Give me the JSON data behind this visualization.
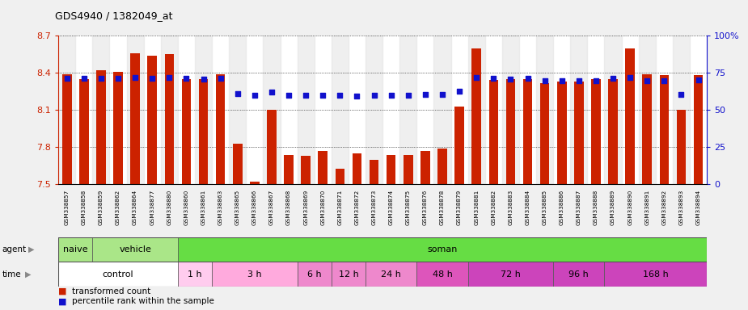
{
  "title": "GDS4940 / 1382049_at",
  "samples": [
    "GSM338857",
    "GSM338858",
    "GSM338859",
    "GSM338862",
    "GSM338864",
    "GSM338877",
    "GSM338880",
    "GSM338860",
    "GSM338861",
    "GSM338863",
    "GSM338865",
    "GSM338866",
    "GSM338867",
    "GSM338868",
    "GSM338869",
    "GSM338870",
    "GSM338871",
    "GSM338872",
    "GSM338873",
    "GSM338874",
    "GSM338875",
    "GSM338876",
    "GSM338878",
    "GSM338879",
    "GSM338881",
    "GSM338882",
    "GSM338883",
    "GSM338884",
    "GSM338885",
    "GSM338886",
    "GSM338887",
    "GSM338888",
    "GSM338889",
    "GSM338890",
    "GSM338891",
    "GSM338892",
    "GSM338893",
    "GSM338894"
  ],
  "bar_values": [
    8.39,
    8.35,
    8.42,
    8.41,
    8.56,
    8.54,
    8.55,
    8.35,
    8.35,
    8.39,
    7.83,
    7.52,
    8.1,
    7.74,
    7.73,
    7.77,
    7.63,
    7.75,
    7.7,
    7.74,
    7.74,
    7.77,
    7.79,
    8.13,
    8.6,
    8.34,
    8.35,
    8.35,
    8.32,
    8.33,
    8.33,
    8.35,
    8.35,
    8.6,
    8.39,
    8.38,
    8.1,
    8.38
  ],
  "percentile_values": [
    8.355,
    8.355,
    8.355,
    8.355,
    8.362,
    8.358,
    8.36,
    8.354,
    8.352,
    8.355,
    8.23,
    8.22,
    8.245,
    8.218,
    8.218,
    8.22,
    8.22,
    8.215,
    8.218,
    8.218,
    8.22,
    8.225,
    8.228,
    8.25,
    8.36,
    8.355,
    8.352,
    8.355,
    8.338,
    8.338,
    8.335,
    8.338,
    8.355,
    8.36,
    8.338,
    8.338,
    8.228,
    8.34
  ],
  "ylim": [
    7.5,
    8.7
  ],
  "yticks": [
    7.5,
    7.8,
    8.1,
    8.4,
    8.7
  ],
  "ytick_labels": [
    "7.5",
    "7.8",
    "8.1",
    "8.4",
    "8.7"
  ],
  "y2ticks": [
    0,
    25,
    50,
    75,
    100
  ],
  "y2tick_labels": [
    "0",
    "25",
    "50",
    "75",
    "100%"
  ],
  "bar_color": "#cc2200",
  "dot_color": "#1111cc",
  "grid_color": "#000000",
  "agent_info": [
    {
      "label": "naive",
      "start": 0,
      "end": 2,
      "color": "#aae688"
    },
    {
      "label": "vehicle",
      "start": 2,
      "end": 7,
      "color": "#aae688"
    },
    {
      "label": "soman",
      "start": 7,
      "end": 38,
      "color": "#66dd44"
    }
  ],
  "time_info": [
    {
      "label": "control",
      "start": 0,
      "end": 7,
      "color": "#ffffff"
    },
    {
      "label": "1 h",
      "start": 7,
      "end": 9,
      "color": "#ffccee"
    },
    {
      "label": "3 h",
      "start": 9,
      "end": 14,
      "color": "#ffaadd"
    },
    {
      "label": "6 h",
      "start": 14,
      "end": 16,
      "color": "#ee88cc"
    },
    {
      "label": "12 h",
      "start": 16,
      "end": 18,
      "color": "#ee88cc"
    },
    {
      "label": "24 h",
      "start": 18,
      "end": 21,
      "color": "#ee88cc"
    },
    {
      "label": "48 h",
      "start": 21,
      "end": 24,
      "color": "#dd55bb"
    },
    {
      "label": "72 h",
      "start": 24,
      "end": 29,
      "color": "#cc44bb"
    },
    {
      "label": "96 h",
      "start": 29,
      "end": 32,
      "color": "#cc44bb"
    },
    {
      "label": "168 h",
      "start": 32,
      "end": 38,
      "color": "#cc44bb"
    }
  ],
  "fig_bg": "#f0f0f0",
  "plot_bg": "#ffffff",
  "xlabel_bg": "#cccccc"
}
